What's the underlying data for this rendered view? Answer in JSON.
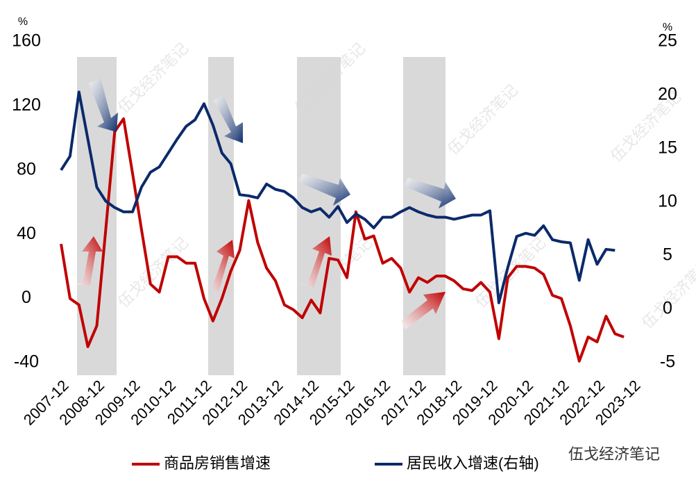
{
  "chart_data": {
    "type": "line",
    "y_label": "%",
    "y2_label": "%",
    "watermark": "伍戈经济笔记",
    "logo": "伍戈经济笔记",
    "x": [
      "2007-12",
      "2008-03",
      "2008-06",
      "2008-09",
      "2008-12",
      "2009-03",
      "2009-06",
      "2009-09",
      "2009-12",
      "2010-03",
      "2010-06",
      "2010-09",
      "2010-12",
      "2011-03",
      "2011-06",
      "2011-09",
      "2011-12",
      "2012-03",
      "2012-06",
      "2012-09",
      "2012-12",
      "2013-03",
      "2013-06",
      "2013-09",
      "2013-12",
      "2014-03",
      "2014-06",
      "2014-09",
      "2014-12",
      "2015-03",
      "2015-06",
      "2015-09",
      "2015-12",
      "2016-03",
      "2016-06",
      "2016-09",
      "2016-12",
      "2017-03",
      "2017-06",
      "2017-09",
      "2017-12",
      "2018-03",
      "2018-06",
      "2018-09",
      "2018-12",
      "2019-03",
      "2019-06",
      "2019-09",
      "2019-12",
      "2020-03",
      "2020-06",
      "2020-09",
      "2020-12",
      "2021-03",
      "2021-06",
      "2021-09",
      "2021-12",
      "2022-03",
      "2022-06",
      "2022-09",
      "2022-12",
      "2023-03",
      "2023-06",
      "2023-09"
    ],
    "series": [
      {
        "name": "商品房销售增速",
        "color": "#c00000",
        "axis": "y",
        "values": [
          34,
          0,
          -4,
          -30,
          -17,
          43,
          104,
          112,
          78,
          43,
          9,
          4,
          26,
          26,
          22,
          22,
          0,
          -14,
          0,
          17,
          30,
          61,
          35,
          19,
          11,
          -4,
          -7,
          -12,
          -1,
          -9,
          25,
          24,
          13,
          54,
          37,
          39,
          22,
          25,
          19,
          4,
          13,
          10,
          14,
          14,
          11,
          6,
          5,
          10,
          4,
          -25,
          13,
          20,
          20,
          19,
          15,
          2,
          0,
          -17,
          -39,
          -24,
          -27,
          -11,
          -22,
          -24
        ]
      },
      {
        "name": "居民收入增速(右轴)",
        "color": "#0b2a6b",
        "axis": "y2",
        "values": [
          13.0,
          14.3,
          20.3,
          15.9,
          11.4,
          10.1,
          9.5,
          9.1,
          9.1,
          11.4,
          12.8,
          13.3,
          14.6,
          15.9,
          17.1,
          17.7,
          19.2,
          17.2,
          14.6,
          13.6,
          10.7,
          10.6,
          10.4,
          11.7,
          11.2,
          11.0,
          10.4,
          9.5,
          9.1,
          9.4,
          8.6,
          9.6,
          8.1,
          8.9,
          8.4,
          7.6,
          8.6,
          8.6,
          9.1,
          9.5,
          9.1,
          8.8,
          8.6,
          8.6,
          8.4,
          8.6,
          8.8,
          8.8,
          9.2,
          0.6,
          3.9,
          6.8,
          7.1,
          6.9,
          7.8,
          6.5,
          6.3,
          6.2,
          2.7,
          6.5,
          4.2,
          5.6,
          5.5,
          null
        ]
      }
    ],
    "xlim": [
      "2007-12",
      "2023-12"
    ],
    "xticks": [
      "2007-12",
      "2008-12",
      "2009-12",
      "2010-12",
      "2011-12",
      "2012-12",
      "2013-12",
      "2014-12",
      "2015-12",
      "2016-12",
      "2017-12",
      "2018-12",
      "2019-12",
      "2020-12",
      "2021-12",
      "2022-12",
      "2023-12"
    ],
    "ylim": [
      -40,
      160
    ],
    "yticks": [
      -40,
      0,
      40,
      80,
      120,
      160
    ],
    "y2lim": [
      -5,
      25
    ],
    "y2ticks": [
      -5,
      0,
      5,
      10,
      15,
      20,
      25
    ]
  }
}
